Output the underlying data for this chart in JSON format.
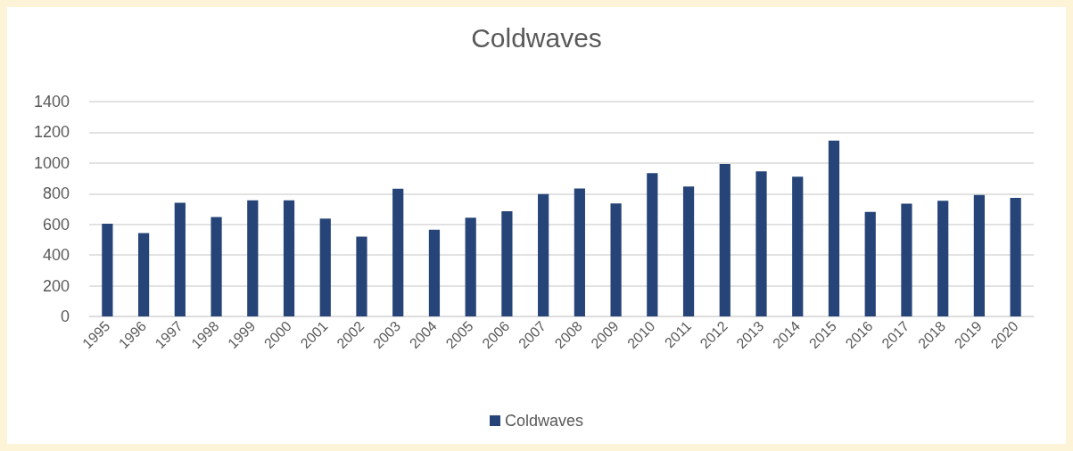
{
  "chart_data": {
    "type": "bar",
    "title": "Coldwaves",
    "categories": [
      "1995",
      "1996",
      "1997",
      "1998",
      "1999",
      "2000",
      "2001",
      "2002",
      "2003",
      "2004",
      "2005",
      "2006",
      "2007",
      "2008",
      "2009",
      "2010",
      "2011",
      "2012",
      "2013",
      "2014",
      "2015",
      "2016",
      "2017",
      "2018",
      "2019",
      "2020"
    ],
    "series": [
      {
        "name": "Coldwaves",
        "color": "#264478",
        "values": [
          604,
          543,
          740,
          647,
          756,
          756,
          637,
          520,
          832,
          565,
          643,
          686,
          797,
          834,
          737,
          934,
          846,
          993,
          945,
          911,
          1146,
          681,
          735,
          754,
          792,
          773
        ]
      }
    ],
    "ylim": [
      0,
      1400
    ],
    "yticks": [
      0,
      200,
      400,
      600,
      800,
      1000,
      1200,
      1400
    ],
    "grid": "y",
    "legend": "bottom"
  }
}
